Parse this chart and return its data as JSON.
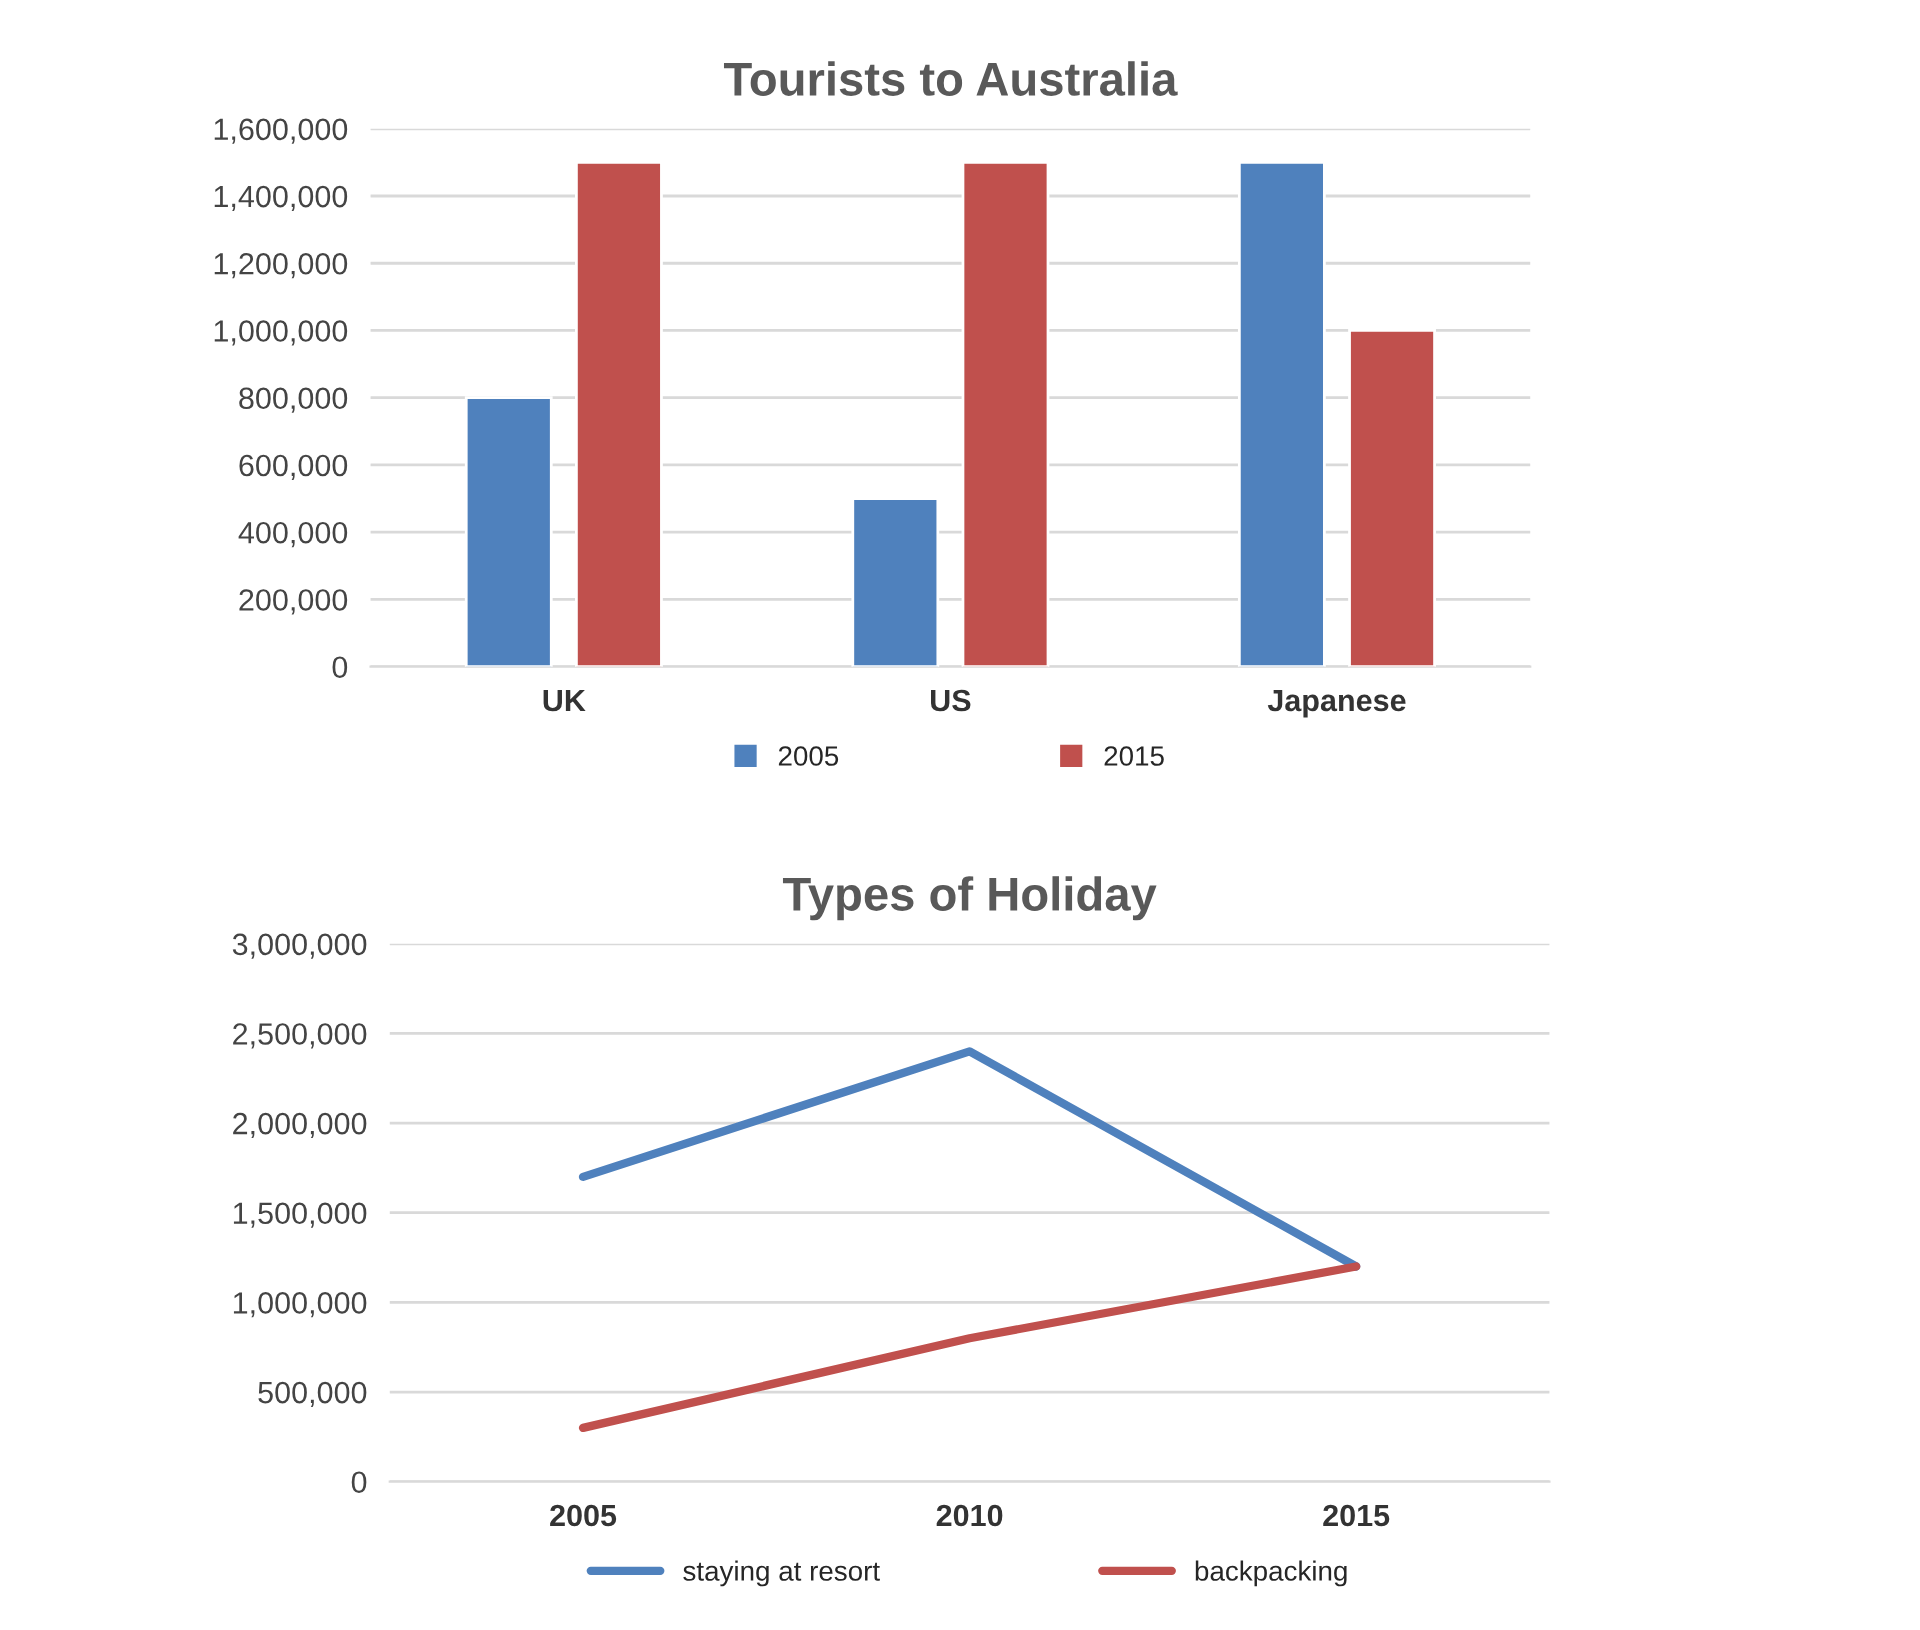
{
  "chart_data": [
    {
      "type": "bar",
      "title": "Tourists to Australia",
      "categories": [
        "UK",
        "US",
        "Japanese"
      ],
      "series": [
        {
          "name": "2005",
          "color": "#4f81bd",
          "values": [
            800000,
            500000,
            1500000
          ]
        },
        {
          "name": "2015",
          "color": "#c0504d",
          "values": [
            1500000,
            1500000,
            1000000
          ]
        }
      ],
      "ylim": [
        0,
        1600000
      ],
      "yticks": [
        {
          "value": 0,
          "label": "0"
        },
        {
          "value": 200000,
          "label": "200,000"
        },
        {
          "value": 400000,
          "label": "400,000"
        },
        {
          "value": 600000,
          "label": "600,000"
        },
        {
          "value": 800000,
          "label": "800,000"
        },
        {
          "value": 1000000,
          "label": "1,000,000"
        },
        {
          "value": 1200000,
          "label": "1,200,000"
        },
        {
          "value": 1400000,
          "label": "1,400,000"
        },
        {
          "value": 1600000,
          "label": "1,600,000"
        }
      ],
      "grid": "y",
      "legend": "bottom"
    },
    {
      "type": "line",
      "title": "Types of Holiday",
      "categories": [
        "2005",
        "2010",
        "2015"
      ],
      "series": [
        {
          "name": "staying at resort",
          "color": "#4f81bd",
          "values": [
            1700000,
            2400000,
            1200000
          ]
        },
        {
          "name": "backpacking",
          "color": "#c0504d",
          "values": [
            300000,
            800000,
            1200000
          ]
        }
      ],
      "ylim": [
        0,
        3000000
      ],
      "yticks": [
        {
          "value": 0,
          "label": "0"
        },
        {
          "value": 500000,
          "label": "500,000"
        },
        {
          "value": 1000000,
          "label": "1,000,000"
        },
        {
          "value": 1500000,
          "label": "1,500,000"
        },
        {
          "value": 2000000,
          "label": "2,000,000"
        },
        {
          "value": 2500000,
          "label": "2,500,000"
        },
        {
          "value": 3000000,
          "label": "3,000,000"
        }
      ],
      "grid": "y",
      "legend": "bottom",
      "marker": "none",
      "line_style": "solid"
    }
  ]
}
